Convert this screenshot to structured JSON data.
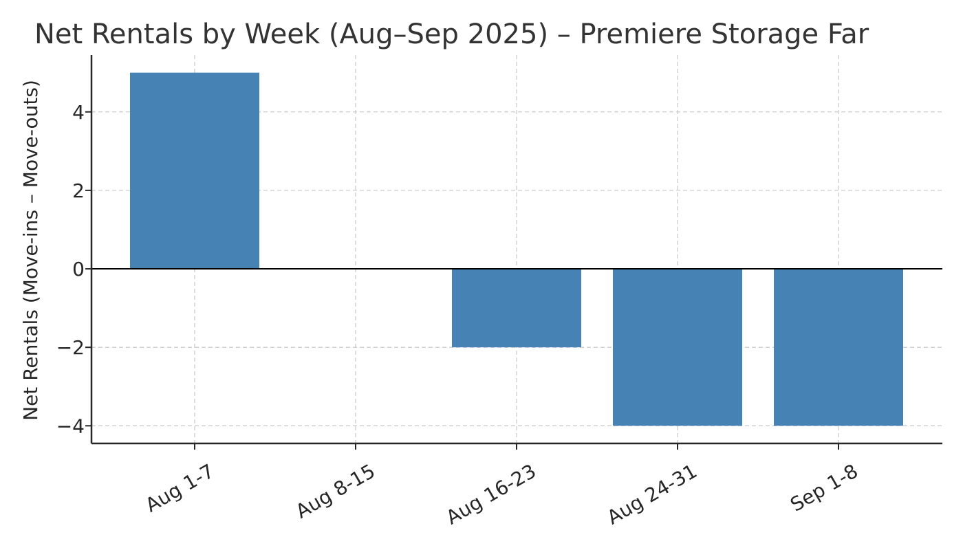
{
  "chart_data": {
    "type": "bar",
    "title": "Net Rentals by Week (Aug–Sep 2025) – Premiere Storage Far",
    "xlabel": "",
    "ylabel": "Net Rentals (Move-ins – Move-outs)",
    "categories": [
      "Aug 1-7",
      "Aug 8-15",
      "Aug 16-23",
      "Aug 24-31",
      "Sep 1-8"
    ],
    "values": [
      5,
      0,
      -2,
      -4,
      -4
    ],
    "ylim": [
      -4.45,
      5.45
    ],
    "yticks": [
      4,
      2,
      0,
      -2,
      -4
    ],
    "ytick_labels": [
      "4",
      "2",
      "0",
      "−2",
      "−4"
    ],
    "grid": true,
    "bar_color": "#4682b4",
    "zero_line": true
  }
}
